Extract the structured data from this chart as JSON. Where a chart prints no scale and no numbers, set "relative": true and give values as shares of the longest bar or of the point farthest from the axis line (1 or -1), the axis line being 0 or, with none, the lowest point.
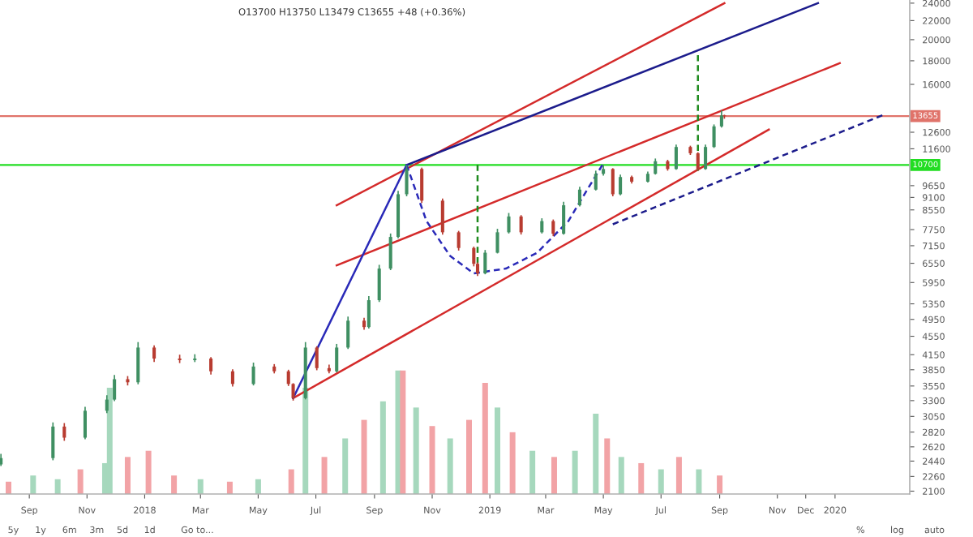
{
  "chart_data": [
    {
      "type": "candlestick",
      "title": "O13700 H13750 L13479 C13655 +48 (+0.36%)",
      "log": true,
      "xlim": [
        "2017-08-01",
        "2020-03-20"
      ],
      "ylim": [
        2070,
        24380
      ],
      "xticks": [
        {
          "value": "2017-09-01",
          "label": "Sep"
        },
        {
          "value": "2017-11-01",
          "label": "Nov"
        },
        {
          "value": "2018-01-01",
          "label": "2018"
        },
        {
          "value": "2018-03-01",
          "label": "Mar"
        },
        {
          "value": "2018-05-01",
          "label": "May"
        },
        {
          "value": "2018-07-01",
          "label": "Jul"
        },
        {
          "value": "2018-09-01",
          "label": "Sep"
        },
        {
          "value": "2018-11-01",
          "label": "Nov"
        },
        {
          "value": "2019-01-01",
          "label": "2019"
        },
        {
          "value": "2019-03-01",
          "label": "Mar"
        },
        {
          "value": "2019-05-01",
          "label": "May"
        },
        {
          "value": "2019-07-01",
          "label": "Jul"
        },
        {
          "value": "2019-09-01",
          "label": "Sep"
        },
        {
          "value": "2019-11-01",
          "label": "Nov"
        },
        {
          "value": "2019-12-01",
          "label": "Dec"
        },
        {
          "value": "2020-01-01",
          "label": "2020"
        }
      ],
      "yticks": [
        24000,
        22000,
        20000,
        18000,
        16000,
        12600,
        11600,
        9650,
        9100,
        8550,
        7750,
        7150,
        6550,
        5950,
        5350,
        4950,
        4550,
        4150,
        3850,
        3550,
        3300,
        3050,
        2820,
        2620,
        2440,
        2260,
        2100
      ],
      "ref_lines": [
        {
          "axis": "y",
          "value": 10700,
          "label": "10700",
          "color": "#22dd22"
        },
        {
          "axis": "y",
          "value": 13655,
          "label": "13655",
          "color": "#e0736a"
        }
      ],
      "annotations": [
        "5y",
        "1y",
        "6m",
        "3m",
        "5d",
        "1d",
        "Go to...",
        "%",
        "log",
        "auto"
      ],
      "series": [
        {
          "type": "candlestick",
          "x": [
            "2017-08-02",
            "2017-09-26",
            "2017-10-08",
            "2017-10-30",
            "2017-11-22",
            "2017-11-30",
            "2017-12-14",
            "2017-12-25",
            "2018-01-11",
            "2018-02-07",
            "2018-02-23",
            "2018-03-12",
            "2018-04-04",
            "2018-04-26",
            "2018-05-18",
            "2018-06-02",
            "2018-06-07",
            "2018-06-20",
            "2018-07-02",
            "2018-07-15",
            "2018-07-23",
            "2018-08-04",
            "2018-08-21",
            "2018-08-26",
            "2018-09-06",
            "2018-09-18",
            "2018-09-26",
            "2018-10-05",
            "2018-10-21",
            "2018-11-12",
            "2018-11-29",
            "2018-12-15",
            "2018-12-19",
            "2018-12-27",
            "2019-01-09",
            "2019-01-21",
            "2019-02-03",
            "2019-02-25",
            "2019-03-09",
            "2019-03-20",
            "2019-04-06",
            "2019-04-23",
            "2019-05-01",
            "2019-05-11",
            "2019-05-19",
            "2019-05-31",
            "2019-06-17",
            "2019-06-25",
            "2019-07-08",
            "2019-07-17",
            "2019-08-01",
            "2019-08-09",
            "2019-08-17",
            "2019-08-26",
            "2019-09-03",
            "2019-09-06"
          ],
          "ohlc": [
            [
              2400,
              2530,
              2380,
              2477
            ],
            [
              2477,
              2960,
              2450,
              2899
            ],
            [
              2899,
              2950,
              2700,
              2743
            ],
            [
              2743,
              3200,
              2720,
              3137
            ],
            [
              3137,
              3390,
              3100,
              3317
            ],
            [
              3317,
              3750,
              3290,
              3672
            ],
            [
              3672,
              3730,
              3560,
              3616
            ],
            [
              3616,
              4420,
              3580,
              4301
            ],
            [
              4301,
              4350,
              4000,
              4071
            ],
            [
              4071,
              4150,
              3980,
              4039
            ],
            [
              4039,
              4160,
              4000,
              4071
            ],
            [
              4071,
              4100,
              3760,
              3820
            ],
            [
              3820,
              3860,
              3540,
              3586
            ],
            [
              3586,
              3990,
              3560,
              3912
            ],
            [
              3912,
              3960,
              3780,
              3820
            ],
            [
              3820,
              3850,
              3550,
              3586
            ],
            [
              3586,
              3600,
              3300,
              3341
            ],
            [
              3341,
              4420,
              3320,
              4301
            ],
            [
              4301,
              4330,
              3840,
              3881
            ],
            [
              3881,
              3950,
              3780,
              3820
            ],
            [
              3820,
              4380,
              3800,
              4301
            ],
            [
              4301,
              5020,
              4270,
              4918
            ],
            [
              4918,
              4990,
              4700,
              4764
            ],
            [
              4764,
              5560,
              4730,
              5448
            ],
            [
              5448,
              6500,
              5400,
              6379
            ],
            [
              6379,
              7600,
              6330,
              7471
            ],
            [
              7471,
              9400,
              7420,
              9245
            ],
            [
              9245,
              10700,
              9150,
              10486
            ],
            [
              10486,
              10560,
              8850,
              8954
            ],
            [
              8954,
              9050,
              7560,
              7646
            ],
            [
              7646,
              7700,
              6980,
              7070
            ],
            [
              7070,
              7120,
              6450,
              6533
            ],
            [
              6533,
              6580,
              6150,
              6228
            ],
            [
              6228,
              7000,
              6200,
              6905
            ],
            [
              6905,
              7780,
              6880,
              7646
            ],
            [
              7646,
              8420,
              7600,
              8275
            ],
            [
              8275,
              8330,
              7560,
              7646
            ],
            [
              7646,
              8200,
              7600,
              8086
            ],
            [
              8086,
              8150,
              7500,
              7591
            ],
            [
              7591,
              8900,
              7560,
              8750
            ],
            [
              8750,
              9600,
              8700,
              9461
            ],
            [
              9461,
              10400,
              9420,
              10238
            ],
            [
              10238,
              10700,
              10150,
              10486
            ],
            [
              10486,
              10530,
              9150,
              9245
            ],
            [
              9245,
              10200,
              9200,
              10075
            ],
            [
              10075,
              10150,
              9750,
              9845
            ],
            [
              9845,
              10350,
              9800,
              10238
            ],
            [
              10238,
              11050,
              10200,
              10903
            ],
            [
              10903,
              10980,
              10400,
              10486
            ],
            [
              10486,
              11850,
              10450,
              11705
            ],
            [
              11705,
              11780,
              11250,
              11347
            ],
            [
              11347,
              11400,
              10400,
              10486
            ],
            [
              10486,
              11850,
              10450,
              11705
            ],
            [
              11705,
              13100,
              11650,
              12974
            ],
            [
              12974,
              14042,
              12900,
              13700
            ],
            [
              13700,
              13750,
              13479,
              13655
            ]
          ],
          "colors": [
            "#3f8f62",
            "#3f8f62",
            "#b83b30",
            "#3f8f62",
            "#3f8f62",
            "#3f8f62",
            "#b83b30",
            "#3f8f62",
            "#b83b30",
            "#b83b30",
            "#3f8f62",
            "#b83b30",
            "#b83b30",
            "#3f8f62",
            "#b83b30",
            "#b83b30",
            "#b83b30",
            "#3f8f62",
            "#b83b30",
            "#b83b30",
            "#3f8f62",
            "#3f8f62",
            "#b83b30",
            "#3f8f62",
            "#3f8f62",
            "#3f8f62",
            "#3f8f62",
            "#3f8f62",
            "#b83b30",
            "#b83b30",
            "#b83b30",
            "#b83b30",
            "#b83b30",
            "#3f8f62",
            "#3f8f62",
            "#3f8f62",
            "#b83b30",
            "#3f8f62",
            "#b83b30",
            "#3f8f62",
            "#3f8f62",
            "#3f8f62",
            "#3f8f62",
            "#b83b30",
            "#3f8f62",
            "#b83b30",
            "#3f8f62",
            "#3f8f62",
            "#b83b30",
            "#3f8f62",
            "#b83b30",
            "#b83b30",
            "#3f8f62",
            "#3f8f62",
            "#3f8f62",
            "#b83b30"
          ]
        },
        {
          "type": "line",
          "x": [
            "2018-07-23",
            "2019-09-06"
          ],
          "values": [
            8750,
            24000
          ],
          "color": "#d42a2a"
        },
        {
          "type": "line",
          "x": [
            "2018-10-05",
            "2019-12-14"
          ],
          "values": [
            10700,
            24000
          ],
          "color": "#1c1c8c"
        },
        {
          "type": "line",
          "x": [
            "2018-07-23",
            "2020-01-06"
          ],
          "values": [
            6483,
            17784
          ],
          "color": "#d42a2a"
        },
        {
          "type": "line",
          "x": [
            "2018-06-07",
            "2019-10-23"
          ],
          "values": [
            3341,
            12770
          ],
          "color": "#d42a2a"
        },
        {
          "type": "line",
          "x": [
            "2019-05-11",
            "2020-02-20"
          ],
          "values": [
            7957,
            13709
          ],
          "color": "#1c1c8c",
          "line_style": "dashed"
        },
        {
          "type": "line",
          "x": [
            "2018-06-07",
            "2018-10-05"
          ],
          "values": [
            3341,
            10700
          ],
          "color": "#2a2ab8"
        },
        {
          "type": "line",
          "x": [
            "2018-10-05",
            "2018-10-26",
            "2018-11-20",
            "2018-12-15",
            "2019-01-18",
            "2019-02-20",
            "2019-03-25",
            "2019-04-14",
            "2019-04-30"
          ],
          "values": [
            10700,
            8086,
            6794,
            6228,
            6379,
            6905,
            8086,
            9461,
            10700
          ],
          "color": "#2a2ab8",
          "line_style": "dashed"
        },
        {
          "type": "line",
          "x": [
            "2018-12-19",
            "2018-12-19"
          ],
          "values": [
            6228,
            10700
          ],
          "color": "#1e8a1e",
          "line_style": "dashed"
        },
        {
          "type": "line",
          "x": [
            "2019-08-09",
            "2019-08-09"
          ],
          "values": [
            10400,
            18505
          ],
          "color": "#1e8a1e",
          "line_style": "dashed"
        }
      ]
    },
    {
      "type": "bar",
      "relative": true,
      "tick_labels": false,
      "xlim": [
        "2017-08-01",
        "2020-03-20"
      ],
      "x": [
        "2017-08-10",
        "2017-09-05",
        "2017-10-01",
        "2017-10-25",
        "2017-11-20",
        "2017-11-25",
        "2017-12-14",
        "2018-01-05",
        "2018-02-01",
        "2018-03-01",
        "2018-04-01",
        "2018-05-01",
        "2018-06-05",
        "2018-06-20",
        "2018-07-10",
        "2018-08-01",
        "2018-08-21",
        "2018-09-10",
        "2018-09-26",
        "2018-10-01",
        "2018-10-15",
        "2018-11-01",
        "2018-11-20",
        "2018-12-10",
        "2018-12-27",
        "2019-01-09",
        "2019-01-25",
        "2019-02-15",
        "2019-03-10",
        "2019-04-01",
        "2019-04-23",
        "2019-05-05",
        "2019-05-20",
        "2019-06-10",
        "2019-07-01",
        "2019-07-20",
        "2019-08-10",
        "2019-09-01"
      ],
      "values": [
        0.1,
        0.15,
        0.12,
        0.2,
        0.25,
        0.86,
        0.3,
        0.35,
        0.15,
        0.12,
        0.1,
        0.12,
        0.2,
        0.86,
        0.3,
        0.45,
        0.6,
        0.75,
        1.0,
        1.0,
        0.7,
        0.55,
        0.45,
        0.6,
        0.9,
        0.7,
        0.5,
        0.35,
        0.3,
        0.35,
        0.65,
        0.45,
        0.3,
        0.25,
        0.2,
        0.3,
        0.2,
        0.15
      ],
      "colors": [
        "#f2a3a6",
        "#a6d8bd",
        "#a6d8bd",
        "#f2a3a6",
        "#a6d8bd",
        "#a6d8bd",
        "#f2a3a6",
        "#f2a3a6",
        "#f2a3a6",
        "#a6d8bd",
        "#f2a3a6",
        "#a6d8bd",
        "#f2a3a6",
        "#a6d8bd",
        "#f2a3a6",
        "#a6d8bd",
        "#f2a3a6",
        "#a6d8bd",
        "#a6d8bd",
        "#f2a3a6",
        "#a6d8bd",
        "#f2a3a6",
        "#a6d8bd",
        "#f2a3a6",
        "#f2a3a6",
        "#a6d8bd",
        "#f2a3a6",
        "#a6d8bd",
        "#f2a3a6",
        "#a6d8bd",
        "#a6d8bd",
        "#f2a3a6",
        "#a6d8bd",
        "#f2a3a6",
        "#a6d8bd",
        "#f2a3a6",
        "#a6d8bd",
        "#f2a3a6"
      ]
    }
  ]
}
